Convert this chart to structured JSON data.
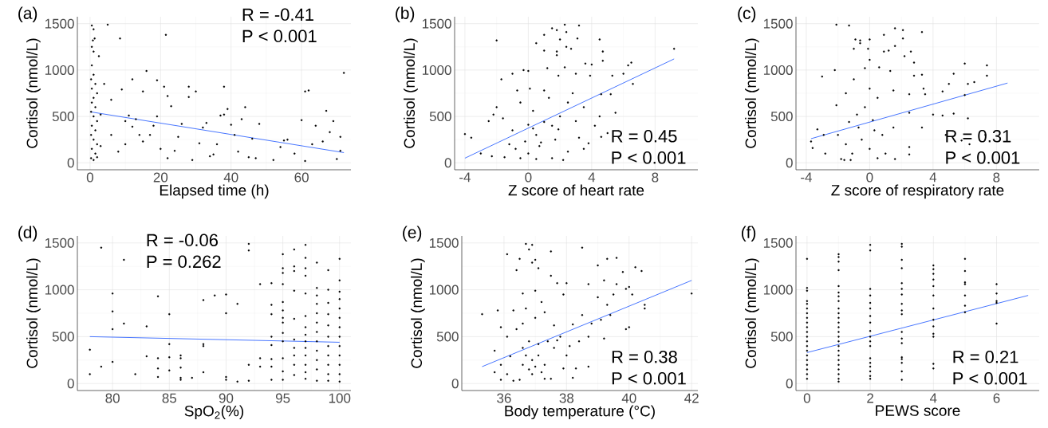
{
  "chart_data": [
    {
      "type": "scatter",
      "title": "(a)",
      "xlabel": "Elapsed time (h)",
      "ylabel": "Cortisol (nmol/L)",
      "annotations": [
        "R = -0.41",
        "P < 0.001"
      ],
      "xlim": [
        -3.6,
        74
      ],
      "xticks": [
        0,
        20,
        40,
        60
      ],
      "ylim": [
        -75,
        1575
      ],
      "yticks": [
        0,
        500,
        1000,
        1500
      ],
      "grid": true,
      "series": [
        {
          "marker": "circle",
          "color": "#000000",
          "x": [
            0.5,
            1,
            0.8,
            1.3,
            0.5,
            1,
            2.5,
            0.5,
            1,
            0.3,
            1.5,
            0.5,
            2,
            1,
            0.5,
            1.5,
            0.3,
            1,
            2,
            0.5,
            1.5,
            0.3,
            1,
            2,
            0.5,
            1.5,
            0.3,
            1,
            2,
            3,
            3,
            4,
            5,
            8.5,
            9,
            6,
            12,
            15,
            16,
            19,
            21.5,
            21,
            22,
            23,
            28,
            28,
            30,
            10,
            11,
            13,
            14,
            15,
            17,
            18,
            19,
            20,
            22,
            24,
            26,
            29,
            31,
            32,
            33,
            35,
            36,
            37,
            38,
            38,
            39,
            40,
            41,
            42,
            43,
            44,
            45,
            46,
            48,
            52,
            54,
            55,
            58,
            60,
            61,
            62,
            61,
            63,
            64,
            66,
            67,
            68,
            69,
            70,
            71,
            72,
            71,
            6,
            8,
            10,
            12,
            25,
            34,
            47,
            56
          ],
          "values": [
            1480,
            1440,
            1320,
            1340,
            1250,
            1200,
            1150,
            1050,
            950,
            900,
            850,
            800,
            750,
            700,
            650,
            600,
            550,
            500,
            450,
            400,
            350,
            300,
            250,
            200,
            150,
            100,
            50,
            30,
            60,
            180,
            520,
            850,
            1490,
            1340,
            790,
            680,
            900,
            770,
            990,
            890,
            1380,
            820,
            720,
            610,
            820,
            710,
            770,
            450,
            510,
            470,
            300,
            230,
            300,
            400,
            500,
            150,
            50,
            130,
            420,
            30,
            210,
            380,
            430,
            90,
            200,
            510,
            820,
            520,
            580,
            410,
            300,
            120,
            470,
            600,
            60,
            260,
            420,
            30,
            170,
            240,
            100,
            460,
            770,
            780,
            20,
            200,
            400,
            230,
            560,
            330,
            450,
            40,
            280,
            970,
            130,
            300,
            120,
            200,
            390,
            280,
            70,
            50,
            250
          ]
        },
        {
          "type": "line",
          "color": "#3366ff",
          "marker": "none",
          "x": [
            0,
            72
          ],
          "values": [
            550,
            110
          ]
        }
      ]
    },
    {
      "type": "scatter",
      "title": "(b)",
      "xlabel": "Z score of heart rate",
      "ylabel": "Cortisol (nmol/L)",
      "annotations": [
        "R = 0.45",
        "P < 0.001"
      ],
      "xlim": [
        -4.65,
        10.7
      ],
      "xticks": [
        -4,
        0,
        4,
        8
      ],
      "ylim": [
        -75,
        1575
      ],
      "yticks": [
        0,
        500,
        1000,
        1500
      ],
      "grid": true,
      "series": [
        {
          "marker": "circle",
          "color": "#000000",
          "x": [
            -4,
            -3.6,
            -2,
            -2,
            -1.7,
            -1,
            -0.3,
            0,
            1,
            1,
            0.5,
            1.5,
            1.8,
            2.3,
            2.4,
            2,
            1.8,
            1.8,
            2.4,
            2.7,
            3.2,
            3.1,
            4.5,
            4.7,
            4.7,
            3.6,
            4,
            1.2,
            2.3,
            6.3,
            6.5,
            6.6,
            9.2,
            6,
            5.3,
            3.9,
            3,
            1.9,
            -3,
            -2.5,
            -2.2,
            -1.6,
            -1,
            -0.7,
            -0.5,
            0,
            0.1,
            0.3,
            0.5,
            0.7,
            1,
            1.3,
            1.5,
            1.7,
            2,
            2.5,
            2.8,
            3,
            3.2,
            3.5,
            3.8,
            4.2,
            4.5,
            4.6,
            5,
            5.5,
            5.2,
            4.6,
            0,
            -0.5,
            -1.5,
            -2.3,
            0.5,
            1.5,
            2.2,
            0.8,
            -0.2,
            -1.2,
            0.3,
            1,
            -0.8,
            2.5,
            3.5,
            1.9
          ],
          "values": [
            310,
            270,
            1320,
            600,
            900,
            960,
            1000,
            990,
            1210,
            1380,
            1290,
            1450,
            1430,
            1490,
            1410,
            1330,
            1200,
            1160,
            1250,
            1230,
            1480,
            1340,
            1330,
            1200,
            1100,
            1070,
            1060,
            1020,
            1030,
            1050,
            1080,
            850,
            1230,
            960,
            940,
            940,
            960,
            940,
            100,
            450,
            520,
            480,
            350,
            780,
            650,
            410,
            800,
            560,
            300,
            180,
            780,
            700,
            400,
            250,
            500,
            650,
            750,
            450,
            270,
            600,
            210,
            400,
            500,
            280,
            320,
            540,
            740,
            740,
            100,
            50,
            60,
            70,
            40,
            50,
            30,
            220,
            230,
            200,
            370,
            440,
            150,
            120,
            150,
            360
          ]
        },
        {
          "type": "line",
          "color": "#3366ff",
          "marker": "none",
          "x": [
            -4,
            9.2
          ],
          "values": [
            50,
            1120
          ]
        }
      ]
    },
    {
      "type": "scatter",
      "title": "(c)",
      "xlabel": "Z score of respiratory rate",
      "ylabel": "Cortisol (nmol/L)",
      "annotations": [
        "R = 0.31",
        "P < 0.001"
      ],
      "xlim": [
        -4.65,
        10.7
      ],
      "xticks": [
        -4,
        0,
        4,
        8
      ],
      "ylim": [
        -75,
        1575
      ],
      "yticks": [
        0,
        500,
        1000,
        1500
      ],
      "grid": true,
      "series": [
        {
          "marker": "circle",
          "color": "#000000",
          "x": [
            -2.1,
            -1.3,
            -0.9,
            -0.6,
            -0.6,
            0,
            -1,
            -0.1,
            0,
            0.9,
            1.6,
            2.1,
            2.1,
            1.6,
            0.9,
            1.2,
            2.6,
            2.2,
            3.3,
            2.8,
            -2.2,
            -0.3,
            0.6,
            1.3,
            3.3,
            2.8,
            5.3,
            6,
            7.4,
            7.4,
            6.6,
            6.2,
            5,
            4.6,
            6,
            3.5,
            -3,
            -1,
            -1.5,
            0,
            0.5,
            1.5,
            2.5,
            3.4,
            2.5,
            3.3,
            4,
            4.6,
            5.3,
            6.2,
            4.8,
            5.8,
            6.3,
            7.3,
            -3.6,
            -3.7,
            -3.3,
            -2.9,
            -2.8,
            -2.1,
            -2,
            -1.8,
            -1.5,
            -1.3,
            -1.1,
            -0.8,
            -0.5,
            -0.3,
            0,
            0.2,
            0.5,
            0.8,
            1,
            1.5,
            1.6,
            2.5,
            2.5,
            -1.6,
            -1.2,
            0.3,
            -0.7
          ],
          "values": [
            1490,
            1480,
            1330,
            1320,
            1290,
            1330,
            1230,
            1230,
            1110,
            1380,
            1450,
            1430,
            1340,
            1260,
            1200,
            1210,
            1200,
            1150,
            1410,
            1080,
            1000,
            1020,
            1030,
            990,
            950,
            940,
            960,
            1070,
            1050,
            940,
            870,
            850,
            850,
            770,
            730,
            740,
            930,
            900,
            750,
            800,
            700,
            780,
            740,
            800,
            540,
            380,
            520,
            510,
            530,
            480,
            300,
            240,
            200,
            300,
            160,
            230,
            360,
            300,
            100,
            620,
            300,
            40,
            200,
            440,
            100,
            520,
            250,
            600,
            150,
            460,
            50,
            300,
            100,
            380,
            40,
            170,
            90,
            30,
            30,
            350,
            380
          ]
        },
        {
          "type": "line",
          "color": "#3366ff",
          "marker": "none",
          "x": [
            -3.7,
            8.7
          ],
          "values": [
            260,
            860
          ]
        }
      ]
    },
    {
      "type": "scatter",
      "title": "(d)",
      "xlabel": "SpO$_{2}$(%)",
      "ylabel": "Cortisol (nmol/L)",
      "annotations": [
        "R = -0.06",
        "P = 0.262"
      ],
      "xlim": [
        76.9,
        101
      ],
      "xticks": [
        80,
        85,
        90,
        95,
        100
      ],
      "ylim": [
        -75,
        1575
      ],
      "yticks": [
        0,
        500,
        1000,
        1500
      ],
      "grid": true,
      "series": [
        {
          "marker": "circle",
          "color": "#000000",
          "x": [
            78,
            78,
            79,
            79,
            80,
            80,
            80,
            80,
            81,
            81,
            82,
            83,
            83,
            84,
            84,
            84,
            84,
            85,
            85,
            85,
            85,
            86,
            86,
            86,
            86,
            86,
            87,
            88,
            88,
            88,
            88,
            89,
            90,
            90,
            90,
            90,
            91,
            91,
            92,
            92,
            92,
            92,
            93,
            93,
            93,
            94,
            94,
            94,
            94,
            94,
            94,
            94,
            94,
            95,
            95,
            95,
            95,
            95,
            95,
            95,
            95,
            95,
            95,
            95,
            95,
            95,
            96,
            96,
            96,
            96,
            96,
            96,
            96,
            96,
            96,
            96,
            97,
            97,
            97,
            97,
            97,
            97,
            97,
            97,
            97,
            97,
            97,
            97,
            97,
            97,
            98,
            98,
            98,
            98,
            98,
            98,
            98,
            98,
            98,
            98,
            98,
            98,
            99,
            99,
            99,
            99,
            99,
            99,
            99,
            99,
            99,
            99,
            99,
            100,
            100,
            100,
            100,
            100,
            100,
            100,
            100,
            100,
            100,
            100,
            100,
            100
          ],
          "values": [
            100,
            360,
            180,
            1450,
            960,
            770,
            580,
            230,
            1320,
            640,
            100,
            610,
            290,
            930,
            270,
            160,
            70,
            740,
            420,
            280,
            140,
            300,
            270,
            170,
            60,
            40,
            60,
            890,
            420,
            400,
            120,
            940,
            950,
            750,
            70,
            40,
            850,
            20,
            1490,
            1420,
            200,
            30,
            1060,
            270,
            180,
            1070,
            840,
            740,
            500,
            410,
            260,
            180,
            40,
            1380,
            1230,
            1180,
            1060,
            870,
            780,
            700,
            650,
            540,
            450,
            270,
            130,
            40,
            1430,
            1250,
            1200,
            990,
            690,
            470,
            380,
            300,
            200,
            90,
            1480,
            1340,
            1230,
            1150,
            960,
            720,
            600,
            520,
            450,
            380,
            300,
            200,
            120,
            50,
            1290,
            1020,
            940,
            850,
            750,
            650,
            550,
            450,
            350,
            250,
            150,
            30,
            1210,
            1000,
            860,
            740,
            620,
            500,
            400,
            300,
            200,
            100,
            30,
            1330,
            1100,
            980,
            900,
            800,
            700,
            600,
            500,
            400,
            300,
            200,
            100,
            20
          ]
        },
        {
          "type": "line",
          "color": "#3366ff",
          "marker": "none",
          "x": [
            78,
            100
          ],
          "values": [
            500,
            440
          ]
        }
      ]
    },
    {
      "type": "scatter",
      "title": "(e)",
      "xlabel": "Body temperature (°C)",
      "ylabel": "Cortisol (nmol/L)",
      "annotations": [
        "R = 0.38",
        "P < 0.001"
      ],
      "xlim": [
        34.65,
        42.2
      ],
      "xticks": [
        36,
        38,
        40,
        42
      ],
      "ylim": [
        -75,
        1575
      ],
      "yticks": [
        0,
        500,
        1000,
        1500
      ],
      "grid": true,
      "series": [
        {
          "marker": "circle",
          "color": "#000000",
          "x": [
            35.3,
            35.8,
            35.7,
            35.7,
            35.9,
            35.9,
            36.1,
            36.1,
            36.2,
            36.3,
            36.4,
            36.5,
            36.6,
            36.6,
            36.7,
            36.8,
            36.9,
            36.9,
            36.7,
            36.5,
            36.6,
            36.7,
            36.8,
            36.9,
            37,
            37,
            37,
            37.1,
            37.1,
            37.2,
            37.2,
            37.3,
            37.4,
            37.5,
            37.5,
            37.5,
            37.6,
            37.7,
            37.8,
            37.9,
            37.9,
            38,
            38,
            38.2,
            38.2,
            38.3,
            38.5,
            38.5,
            38.4,
            38.7,
            38.7,
            38.8,
            39,
            39,
            39.1,
            39.3,
            39.2,
            39.3,
            39.4,
            39.6,
            39.6,
            39.5,
            39.8,
            39.9,
            39.9,
            40,
            40,
            40.1,
            40.2,
            40.4,
            40.5,
            40.5,
            42,
            35.9,
            36.1,
            36.3,
            36.6,
            36.8,
            36.9,
            37,
            37.1,
            37.3,
            37.6,
            38.1,
            38.7,
            39.2,
            36.4,
            37.3,
            37.7
          ],
          "values": [
            740,
            780,
            350,
            120,
            600,
            40,
            1380,
            500,
            290,
            780,
            1210,
            1330,
            960,
            640,
            1490,
            1430,
            1480,
            1290,
            800,
            40,
            200,
            300,
            450,
            100,
            1320,
            990,
            700,
            1230,
            300,
            120,
            870,
            760,
            450,
            1410,
            1150,
            50,
            620,
            1070,
            500,
            950,
            160,
            1070,
            300,
            630,
            60,
            160,
            1450,
            730,
            450,
            1060,
            180,
            640,
            1260,
            920,
            680,
            1330,
            1100,
            840,
            730,
            1340,
            1060,
            950,
            1190,
            1010,
            580,
            1030,
            600,
            950,
            1240,
            1200,
            800,
            840,
            960,
            200,
            100,
            30,
            380,
            150,
            250,
            180,
            420,
            200,
            380,
            400,
            500,
            480,
            580,
            50,
            460
          ]
        },
        {
          "type": "line",
          "color": "#3366ff",
          "marker": "none",
          "x": [
            35.3,
            42
          ],
          "values": [
            180,
            1100
          ]
        }
      ]
    },
    {
      "type": "scatter",
      "title": "(f)",
      "xlabel": "PEWS score",
      "ylabel": "Cortisol (nmol/L)",
      "annotations": [
        "R = 0.21",
        "P < 0.001"
      ],
      "xlim": [
        -0.35,
        7.35
      ],
      "xticks": [
        0,
        2,
        4,
        6
      ],
      "ylim": [
        -75,
        1575
      ],
      "yticks": [
        0,
        500,
        1000,
        1500
      ],
      "grid": true,
      "series": [
        {
          "marker": "circle",
          "color": "#000000",
          "x": [
            0,
            0,
            0,
            0,
            0,
            0,
            0,
            0,
            0,
            0,
            0,
            0,
            0,
            0,
            0,
            0,
            0,
            0,
            0,
            0,
            0,
            1,
            1,
            1,
            1,
            1,
            1,
            1,
            1,
            1,
            1,
            1,
            1,
            1,
            1,
            1,
            1,
            1,
            1,
            1,
            1,
            1,
            1,
            1,
            1,
            1,
            2,
            2,
            2,
            2,
            2,
            2,
            2,
            2,
            2,
            2,
            2,
            2,
            2,
            2,
            2,
            2,
            2,
            2,
            3,
            3,
            3,
            3,
            3,
            3,
            3,
            3,
            3,
            3,
            3,
            3,
            3,
            3,
            3,
            3,
            3,
            3,
            4,
            4,
            4,
            4,
            4,
            4,
            4,
            4,
            4,
            4,
            4,
            4,
            4,
            5,
            5,
            5,
            5,
            5,
            5,
            5,
            6,
            6,
            6,
            6,
            6
          ],
          "values": [
            1330,
            1020,
            990,
            880,
            850,
            800,
            750,
            700,
            650,
            600,
            550,
            500,
            450,
            400,
            350,
            300,
            250,
            200,
            150,
            100,
            50,
            1380,
            1350,
            1300,
            1210,
            1040,
            970,
            930,
            880,
            800,
            750,
            700,
            650,
            600,
            550,
            500,
            450,
            400,
            350,
            300,
            250,
            200,
            150,
            100,
            50,
            20,
            1480,
            1420,
            1010,
            940,
            860,
            800,
            720,
            650,
            560,
            500,
            450,
            400,
            270,
            220,
            180,
            130,
            80,
            50,
            1490,
            1460,
            1320,
            1230,
            1070,
            1010,
            950,
            850,
            780,
            740,
            550,
            480,
            430,
            280,
            260,
            220,
            130,
            40,
            1260,
            1220,
            1170,
            1110,
            1040,
            940,
            800,
            680,
            610,
            530,
            500,
            210,
            160,
            1330,
            1200,
            1080,
            1060,
            940,
            830,
            760,
            1060,
            960,
            880,
            860,
            640
          ]
        },
        {
          "type": "line",
          "color": "#3366ff",
          "marker": "none",
          "x": [
            0,
            7
          ],
          "values": [
            330,
            940
          ]
        }
      ]
    }
  ]
}
